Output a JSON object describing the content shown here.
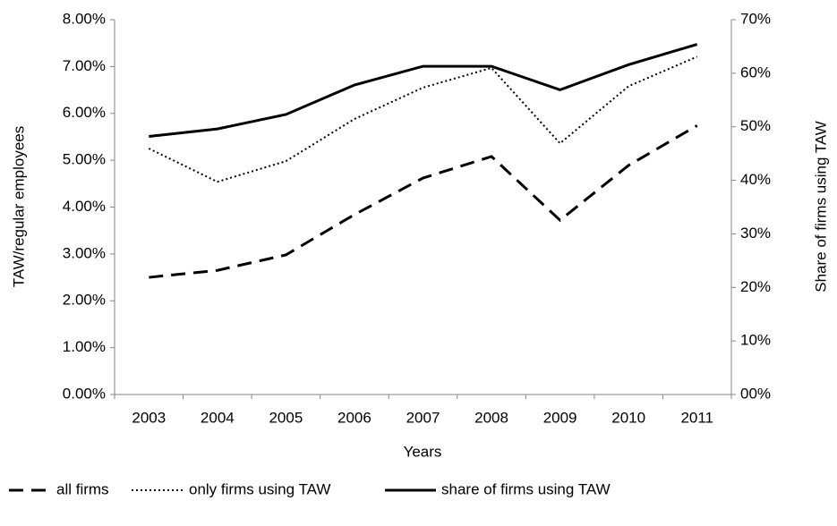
{
  "chart_data": {
    "type": "line",
    "x_label": "Years",
    "y_label": "TAW/regular employees",
    "y2_label": "Share of firms using TAW",
    "categories": [
      "2003",
      "2004",
      "2005",
      "2006",
      "2007",
      "2008",
      "2009",
      "2010",
      "2011"
    ],
    "ylim": [
      0,
      8
    ],
    "yticks": [
      {
        "value": 0,
        "label": "0.00%"
      },
      {
        "value": 1,
        "label": "1.00%"
      },
      {
        "value": 2,
        "label": "2.00%"
      },
      {
        "value": 3,
        "label": "3.00%"
      },
      {
        "value": 4,
        "label": "4.00%"
      },
      {
        "value": 5,
        "label": "5.00%"
      },
      {
        "value": 6,
        "label": "6.00%"
      },
      {
        "value": 7,
        "label": "7.00%"
      },
      {
        "value": 8,
        "label": "8.00%"
      }
    ],
    "y2lim": [
      0,
      70
    ],
    "y2ticks": [
      {
        "value": 0,
        "label": "00%"
      },
      {
        "value": 10,
        "label": "10%"
      },
      {
        "value": 20,
        "label": "20%"
      },
      {
        "value": 30,
        "label": "30%"
      },
      {
        "value": 40,
        "label": "40%"
      },
      {
        "value": 50,
        "label": "50%"
      },
      {
        "value": 60,
        "label": "60%"
      },
      {
        "value": 70,
        "label": "70%"
      }
    ],
    "grid": false,
    "legend": "bottom",
    "series": [
      {
        "name": "all firms",
        "color": "#000000",
        "style": "dashed",
        "values": [
          2.5,
          2.65,
          2.98,
          3.84,
          4.62,
          5.08,
          3.72,
          4.89,
          5.74
        ]
      },
      {
        "name": "only firms using TAW",
        "color": "#000000",
        "style": "dotted",
        "values": [
          5.25,
          4.54,
          4.98,
          5.88,
          6.55,
          6.97,
          5.36,
          6.58,
          7.21
        ]
      },
      {
        "name": "share of firms using TAW",
        "color": "#000000",
        "style": "solid",
        "axis": "y2",
        "values": [
          48.2,
          49.6,
          52.3,
          57.8,
          61.3,
          61.3,
          56.9,
          61.6,
          65.4
        ]
      }
    ]
  }
}
